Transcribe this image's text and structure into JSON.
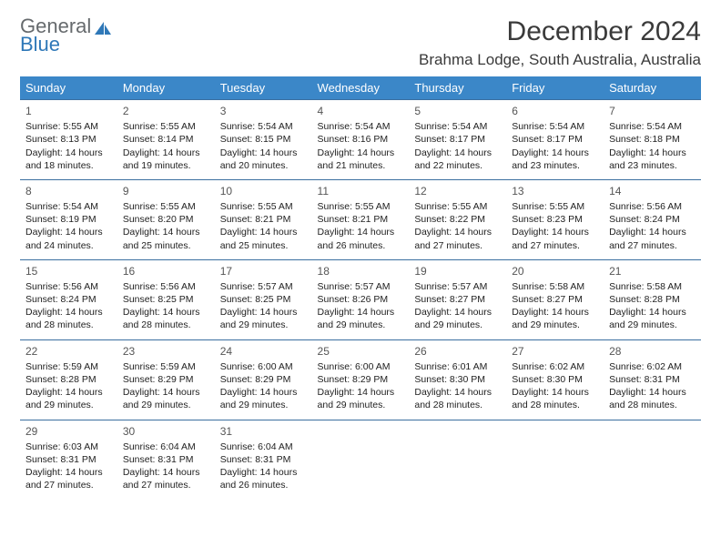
{
  "logo": {
    "line1": "General",
    "line2": "Blue",
    "icon_color": "#2f78b8",
    "text_color_1": "#666a6d",
    "text_color_2": "#2f78b8"
  },
  "header": {
    "month_title": "December 2024",
    "location": "Brahma Lodge, South Australia, Australia"
  },
  "colors": {
    "header_bg": "#3b87c8",
    "header_fg": "#ffffff",
    "row_divider": "#3b6fa0",
    "page_bg": "#ffffff"
  },
  "day_names": [
    "Sunday",
    "Monday",
    "Tuesday",
    "Wednesday",
    "Thursday",
    "Friday",
    "Saturday"
  ],
  "weeks": [
    [
      {
        "n": "1",
        "sr": "5:55 AM",
        "ss": "8:13 PM",
        "dl": "14 hours and 18 minutes."
      },
      {
        "n": "2",
        "sr": "5:55 AM",
        "ss": "8:14 PM",
        "dl": "14 hours and 19 minutes."
      },
      {
        "n": "3",
        "sr": "5:54 AM",
        "ss": "8:15 PM",
        "dl": "14 hours and 20 minutes."
      },
      {
        "n": "4",
        "sr": "5:54 AM",
        "ss": "8:16 PM",
        "dl": "14 hours and 21 minutes."
      },
      {
        "n": "5",
        "sr": "5:54 AM",
        "ss": "8:17 PM",
        "dl": "14 hours and 22 minutes."
      },
      {
        "n": "6",
        "sr": "5:54 AM",
        "ss": "8:17 PM",
        "dl": "14 hours and 23 minutes."
      },
      {
        "n": "7",
        "sr": "5:54 AM",
        "ss": "8:18 PM",
        "dl": "14 hours and 23 minutes."
      }
    ],
    [
      {
        "n": "8",
        "sr": "5:54 AM",
        "ss": "8:19 PM",
        "dl": "14 hours and 24 minutes."
      },
      {
        "n": "9",
        "sr": "5:55 AM",
        "ss": "8:20 PM",
        "dl": "14 hours and 25 minutes."
      },
      {
        "n": "10",
        "sr": "5:55 AM",
        "ss": "8:21 PM",
        "dl": "14 hours and 25 minutes."
      },
      {
        "n": "11",
        "sr": "5:55 AM",
        "ss": "8:21 PM",
        "dl": "14 hours and 26 minutes."
      },
      {
        "n": "12",
        "sr": "5:55 AM",
        "ss": "8:22 PM",
        "dl": "14 hours and 27 minutes."
      },
      {
        "n": "13",
        "sr": "5:55 AM",
        "ss": "8:23 PM",
        "dl": "14 hours and 27 minutes."
      },
      {
        "n": "14",
        "sr": "5:56 AM",
        "ss": "8:24 PM",
        "dl": "14 hours and 27 minutes."
      }
    ],
    [
      {
        "n": "15",
        "sr": "5:56 AM",
        "ss": "8:24 PM",
        "dl": "14 hours and 28 minutes."
      },
      {
        "n": "16",
        "sr": "5:56 AM",
        "ss": "8:25 PM",
        "dl": "14 hours and 28 minutes."
      },
      {
        "n": "17",
        "sr": "5:57 AM",
        "ss": "8:25 PM",
        "dl": "14 hours and 29 minutes."
      },
      {
        "n": "18",
        "sr": "5:57 AM",
        "ss": "8:26 PM",
        "dl": "14 hours and 29 minutes."
      },
      {
        "n": "19",
        "sr": "5:57 AM",
        "ss": "8:27 PM",
        "dl": "14 hours and 29 minutes."
      },
      {
        "n": "20",
        "sr": "5:58 AM",
        "ss": "8:27 PM",
        "dl": "14 hours and 29 minutes."
      },
      {
        "n": "21",
        "sr": "5:58 AM",
        "ss": "8:28 PM",
        "dl": "14 hours and 29 minutes."
      }
    ],
    [
      {
        "n": "22",
        "sr": "5:59 AM",
        "ss": "8:28 PM",
        "dl": "14 hours and 29 minutes."
      },
      {
        "n": "23",
        "sr": "5:59 AM",
        "ss": "8:29 PM",
        "dl": "14 hours and 29 minutes."
      },
      {
        "n": "24",
        "sr": "6:00 AM",
        "ss": "8:29 PM",
        "dl": "14 hours and 29 minutes."
      },
      {
        "n": "25",
        "sr": "6:00 AM",
        "ss": "8:29 PM",
        "dl": "14 hours and 29 minutes."
      },
      {
        "n": "26",
        "sr": "6:01 AM",
        "ss": "8:30 PM",
        "dl": "14 hours and 28 minutes."
      },
      {
        "n": "27",
        "sr": "6:02 AM",
        "ss": "8:30 PM",
        "dl": "14 hours and 28 minutes."
      },
      {
        "n": "28",
        "sr": "6:02 AM",
        "ss": "8:31 PM",
        "dl": "14 hours and 28 minutes."
      }
    ],
    [
      {
        "n": "29",
        "sr": "6:03 AM",
        "ss": "8:31 PM",
        "dl": "14 hours and 27 minutes."
      },
      {
        "n": "30",
        "sr": "6:04 AM",
        "ss": "8:31 PM",
        "dl": "14 hours and 27 minutes."
      },
      {
        "n": "31",
        "sr": "6:04 AM",
        "ss": "8:31 PM",
        "dl": "14 hours and 26 minutes."
      },
      null,
      null,
      null,
      null
    ]
  ],
  "labels": {
    "sunrise": "Sunrise:",
    "sunset": "Sunset:",
    "daylight": "Daylight:"
  }
}
